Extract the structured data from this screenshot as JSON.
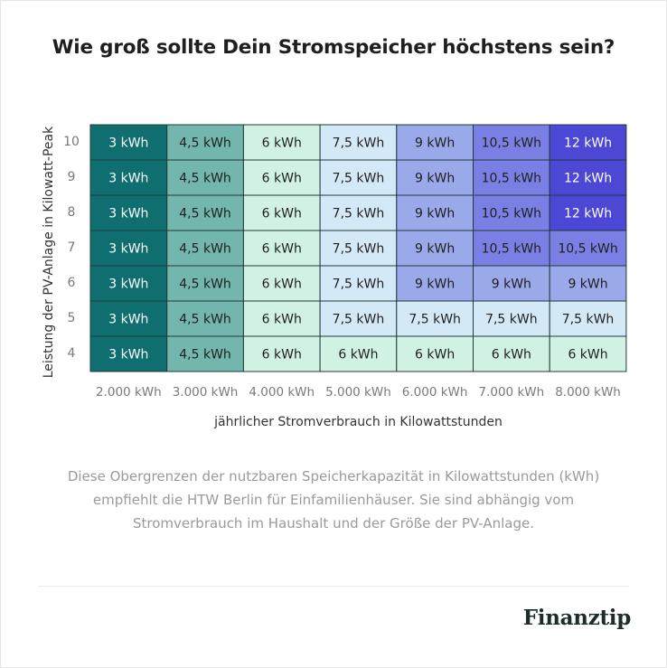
{
  "title": "Wie groß sollte Dein Stromspeicher höchstens sein?",
  "chart_data": {
    "type": "heatmap",
    "xlabel": "jährlicher Stromverbrauch in Kilowattstunden",
    "ylabel": "Leistung der PV-Anlage in Kilowatt-Peak",
    "x": [
      "2.000 kWh",
      "3.000 kWh",
      "4.000 kWh",
      "5.000 kWh",
      "6.000 kWh",
      "7.000 kWh",
      "8.000 kWh"
    ],
    "y": [
      "10",
      "9",
      "8",
      "7",
      "6",
      "5",
      "4"
    ],
    "values": [
      [
        3,
        4.5,
        6,
        7.5,
        9,
        10.5,
        12
      ],
      [
        3,
        4.5,
        6,
        7.5,
        9,
        10.5,
        12
      ],
      [
        3,
        4.5,
        6,
        7.5,
        9,
        10.5,
        12
      ],
      [
        3,
        4.5,
        6,
        7.5,
        9,
        10.5,
        10.5
      ],
      [
        3,
        4.5,
        6,
        7.5,
        9,
        9,
        9
      ],
      [
        3,
        4.5,
        6,
        7.5,
        7.5,
        7.5,
        7.5
      ],
      [
        3,
        4.5,
        6,
        6,
        6,
        6,
        6
      ]
    ],
    "labels": [
      [
        "3 kWh",
        "4,5 kWh",
        "6 kWh",
        "7,5 kWh",
        "9 kWh",
        "10,5 kWh",
        "12 kWh"
      ],
      [
        "3 kWh",
        "4,5 kWh",
        "6 kWh",
        "7,5 kWh",
        "9 kWh",
        "10,5 kWh",
        "12 kWh"
      ],
      [
        "3 kWh",
        "4,5 kWh",
        "6 kWh",
        "7,5 kWh",
        "9 kWh",
        "10,5 kWh",
        "12 kWh"
      ],
      [
        "3 kWh",
        "4,5 kWh",
        "6 kWh",
        "7,5 kWh",
        "9 kWh",
        "10,5 kWh",
        "10,5 kWh"
      ],
      [
        "3 kWh",
        "4,5 kWh",
        "6 kWh",
        "7,5 kWh",
        "9 kWh",
        "9 kWh",
        "9 kWh"
      ],
      [
        "3 kWh",
        "4,5 kWh",
        "6 kWh",
        "7,5 kWh",
        "7,5 kWh",
        "7,5 kWh",
        "7,5 kWh"
      ],
      [
        "3 kWh",
        "4,5 kWh",
        "6 kWh",
        "6 kWh",
        "6 kWh",
        "6 kWh",
        "6 kWh"
      ]
    ],
    "colors": {
      "3": "#0f6f70",
      "4.5": "#73b6ae",
      "6": "#d1f2e3",
      "7.5": "#d4e9f7",
      "9": "#9aa9e9",
      "10.5": "#7a80e3",
      "12": "#4d47d6"
    },
    "text_colors": {
      "3": "#ffffff",
      "4.5": "#1f1f1f",
      "6": "#1f1f1f",
      "7.5": "#1f1f1f",
      "9": "#1f1f1f",
      "10.5": "#1f1f1f",
      "12": "#ffffff"
    },
    "grid": true
  },
  "note": "Diese Obergrenzen der nutzbaren Speicherkapazität in Kilowattstunden (kWh) empfiehlt die HTW Berlin für Einfamilienhäuser. Sie sind abhängig vom Stromverbrauch im Haushalt und der Größe der PV-Anlage.",
  "brand": "Finanztip"
}
